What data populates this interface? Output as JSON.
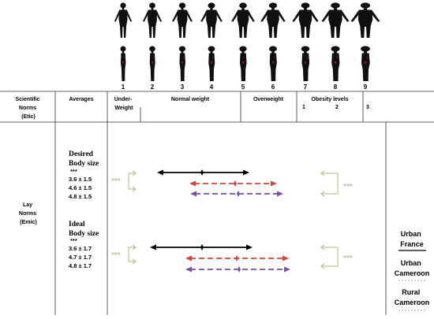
{
  "colors": {
    "urban_france": "#000000",
    "urban_cameroon": "#d9413c",
    "rural_cameroon": "#7a4fa8",
    "significance": "#b8c79a",
    "silhouette": "#101010",
    "silhouette_accent": "#a31515"
  },
  "silhouettes": {
    "numbers": [
      "1",
      "2",
      "3",
      "4",
      "5",
      "6",
      "7",
      "8",
      "9"
    ],
    "front_icon": "human-front-silhouette-icon",
    "side_icon": "human-side-silhouette-icon"
  },
  "table": {
    "headers": {
      "scientific_norms": [
        "Scientific",
        "Norms",
        "(Etic)"
      ],
      "averages": "Averages",
      "underweight": [
        "Under-",
        "Weight"
      ],
      "normal_weight": "Normal weight",
      "overweight": "Overweight",
      "obesity_levels": "Obesity levels",
      "obesity_numbers": [
        "1",
        "2",
        "3"
      ]
    },
    "row_label": [
      "Lay",
      "Norms",
      "(Emic)"
    ],
    "desired": {
      "title": [
        "Desired",
        "Body size"
      ],
      "sig": "***",
      "values": [
        "3.6 ± 1.5",
        "4.6 ± 1.5",
        "4.8 ± 1.5"
      ],
      "bracket_stars": "***"
    },
    "ideal": {
      "title": [
        "Ideal",
        "Body size"
      ],
      "sig": "***",
      "values": [
        "3.6 ± 1.7",
        "4.7 ± 1.7",
        "4.8 ± 1.7"
      ],
      "bracket_stars": "***"
    }
  },
  "legend": {
    "items": [
      {
        "label": [
          "Urban",
          "France"
        ],
        "style": "solid"
      },
      {
        "label": [
          "Urban",
          "Cameroon"
        ],
        "style": "dashed"
      },
      {
        "label": [
          "Rural",
          "Cameroon"
        ],
        "style": "dashed"
      }
    ]
  }
}
